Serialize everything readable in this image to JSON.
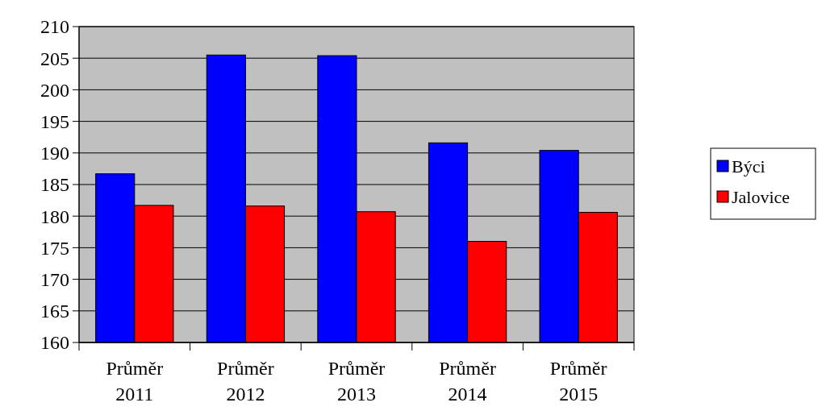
{
  "chart_data": {
    "type": "bar",
    "categories": [
      "Průměr 2011",
      "Průměr 2012",
      "Průměr 2013",
      "Průměr 2014",
      "Průměr 2015"
    ],
    "series": [
      {
        "name": "Býci",
        "color": "#0000ff",
        "values": [
          186.7,
          205.5,
          205.4,
          191.6,
          190.4
        ]
      },
      {
        "name": "Jalovice",
        "color": "#ff0000",
        "values": [
          181.7,
          181.6,
          180.7,
          176.0,
          180.6
        ]
      }
    ],
    "ylim": [
      160,
      210
    ],
    "yticks": [
      160,
      165,
      170,
      175,
      180,
      185,
      190,
      195,
      200,
      205,
      210
    ],
    "grid": "y",
    "legend": "right"
  }
}
